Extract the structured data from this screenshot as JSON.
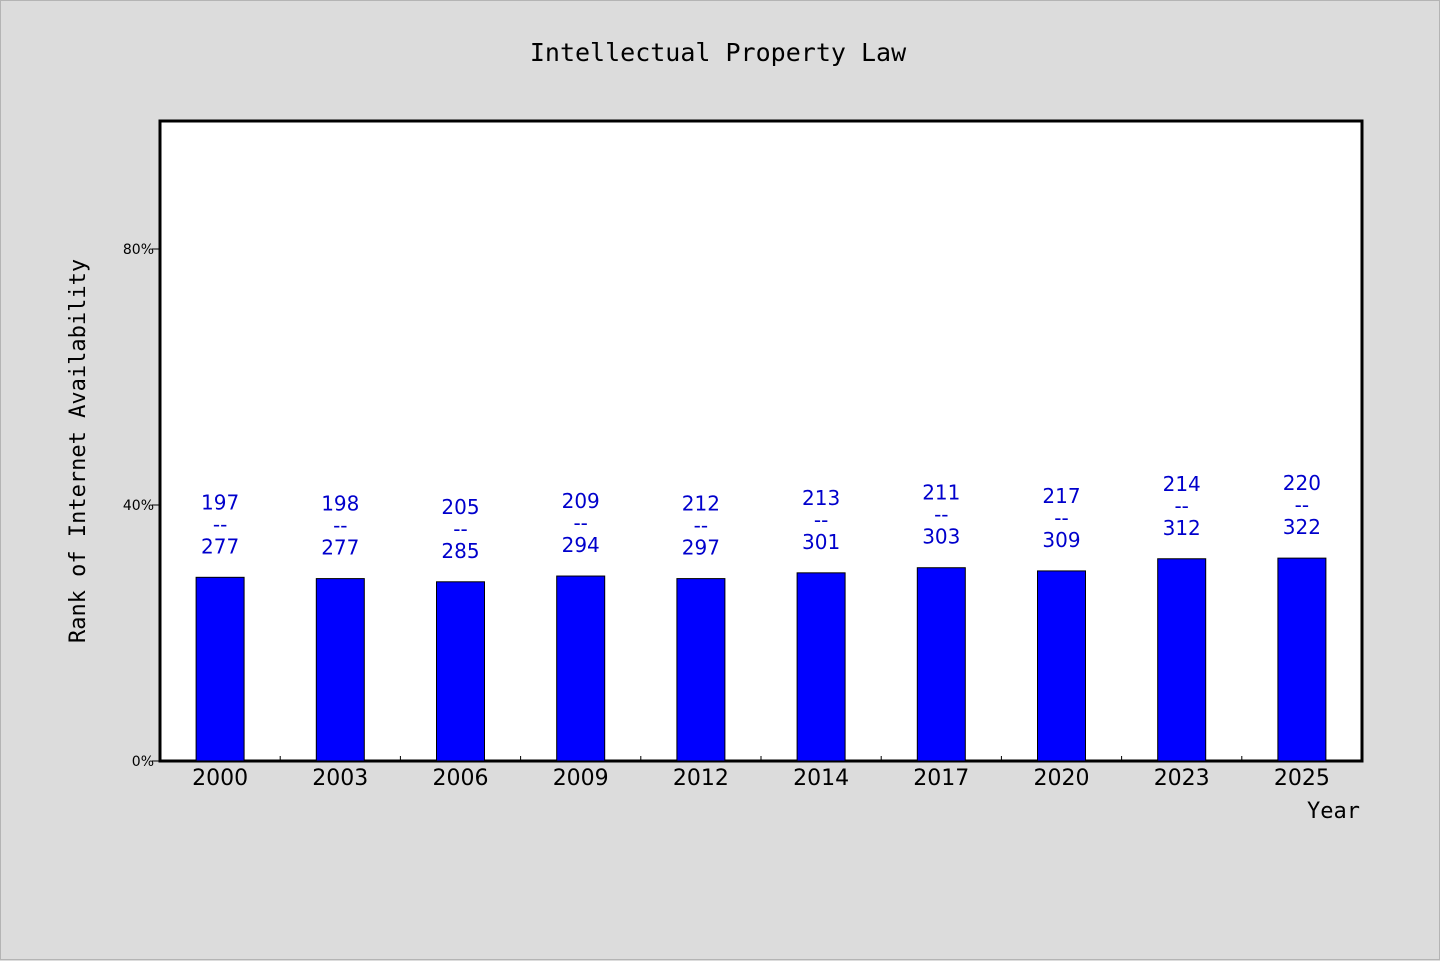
{
  "chart_data": {
    "type": "bar",
    "title": "Intellectual Property Law",
    "xlabel": "Year",
    "ylabel": "Rank of Internet Availability",
    "categories": [
      "2000",
      "2003",
      "2006",
      "2009",
      "2012",
      "2014",
      "2017",
      "2020",
      "2023",
      "2025"
    ],
    "values": [
      28.7,
      28.5,
      28.0,
      28.9,
      28.5,
      29.4,
      30.2,
      29.7,
      31.6,
      31.7
    ],
    "label_top": [
      "197",
      "198",
      "205",
      "209",
      "212",
      "213",
      "211",
      "217",
      "214",
      "220"
    ],
    "label_separator": "--",
    "label_bottom": [
      "277",
      "277",
      "285",
      "294",
      "297",
      "301",
      "303",
      "309",
      "312",
      "322"
    ],
    "ylim": [
      0,
      100
    ],
    "yticks": [
      0,
      40,
      80
    ],
    "ytick_labels": [
      "0%",
      "40%",
      "80%"
    ],
    "grid": false,
    "legend": "none",
    "colors": {
      "bar": "#0000ff",
      "label": "#0000cc",
      "background": "#dcdcdc",
      "plot_background": "#ffffff"
    }
  }
}
